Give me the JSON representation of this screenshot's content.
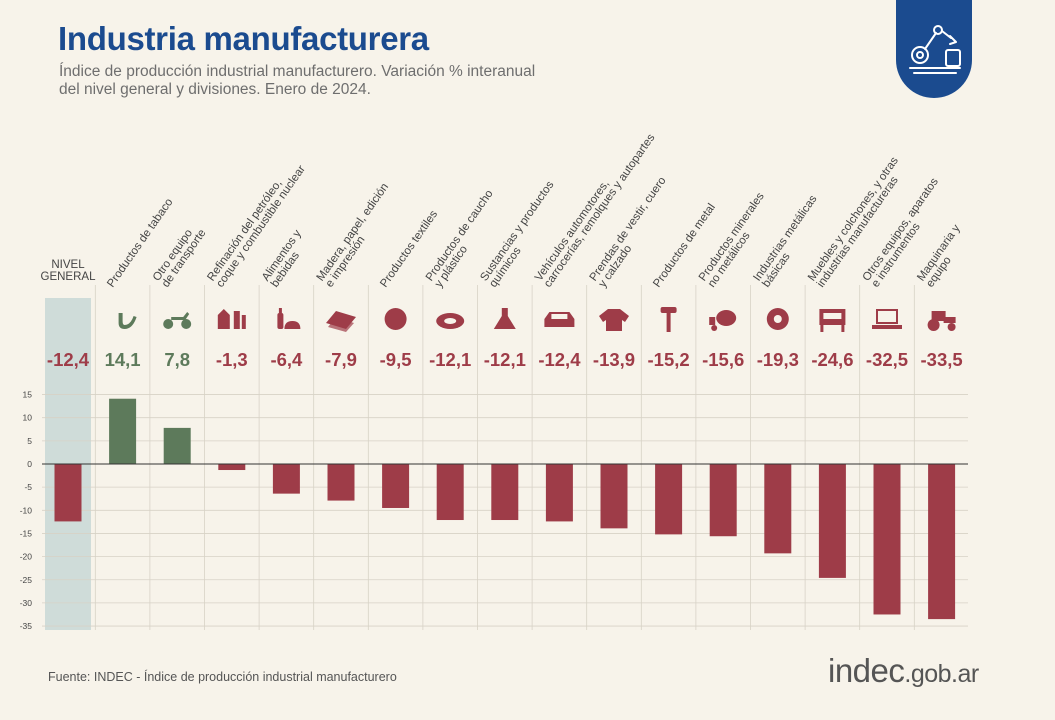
{
  "header": {
    "title": "Industria manufacturera",
    "subtitle_line1": "Índice de producción industrial manufacturero. Variación % interanual",
    "subtitle_line2": "del nivel general y divisiones. Enero de 2024."
  },
  "footer": {
    "source": "Fuente: INDEC - Índice de producción industrial manufacturero",
    "brand_main": "indec",
    "brand_suffix": ".gob.ar"
  },
  "colors": {
    "positive": "#5d7a5b",
    "negative": "#9e3c48",
    "highlight_band": "#cfdcd9",
    "brand_blue": "#1b4b8f"
  },
  "chart_data": {
    "type": "bar",
    "categories": [
      [
        "NIVEL",
        "GENERAL"
      ],
      [
        "Productos de tabaco"
      ],
      [
        "Otro equipo",
        "de transporte"
      ],
      [
        "Refinación del petróleo,",
        "coque y combustible nuclear"
      ],
      [
        "Alimentos y",
        "bebidas"
      ],
      [
        "Madera, papel, edición",
        "e impresión"
      ],
      [
        "Productos textiles"
      ],
      [
        "Productos de caucho",
        "y plástico"
      ],
      [
        "Sustancias y productos",
        "químicos"
      ],
      [
        "Vehículos automotores,",
        "carrocerías, remolques y autopartes"
      ],
      [
        "Prendas de vestir, cuero",
        "y calzado"
      ],
      [
        "Productos de metal"
      ],
      [
        "Productos minerales",
        "no metálicos"
      ],
      [
        "Industrias metálicas",
        "básicas"
      ],
      [
        "Muebles y colchones, y otras",
        "industrias manufactureras"
      ],
      [
        "Otros equipos, aparatos",
        "e instrumentos"
      ],
      [
        "Maquinaria y",
        "equipo"
      ]
    ],
    "values": [
      -12.4,
      14.1,
      7.8,
      -1.3,
      -6.4,
      -7.9,
      -9.5,
      -12.1,
      -12.1,
      -12.4,
      -13.9,
      -15.2,
      -15.6,
      -19.3,
      -24.6,
      -32.5,
      -33.5
    ],
    "value_labels": [
      "-12,4",
      "14,1",
      "7,8",
      "-1,3",
      "-6,4",
      "-7,9",
      "-9,5",
      "-12,1",
      "-12,1",
      "-12,4",
      "-13,9",
      "-15,2",
      "-15,6",
      "-19,3",
      "-24,6",
      "-32,5",
      "-33,5"
    ],
    "icons": [
      "",
      "pipe-icon",
      "motorcycle-icon",
      "refinery-icon",
      "bottle-bread-icon",
      "paper-icon",
      "yarn-icon",
      "tire-icon",
      "flask-icon",
      "car-icon",
      "shirt-icon",
      "hammer-icon",
      "cement-mixer-icon",
      "metal-coil-icon",
      "furniture-icon",
      "laptop-icon",
      "tractor-icon"
    ],
    "yticks": [
      15,
      10,
      5,
      0,
      -5,
      -10,
      -15,
      -20,
      -25,
      -30,
      -35
    ],
    "ylim": [
      -35,
      18
    ],
    "grid": true,
    "highlight_category": 0
  }
}
